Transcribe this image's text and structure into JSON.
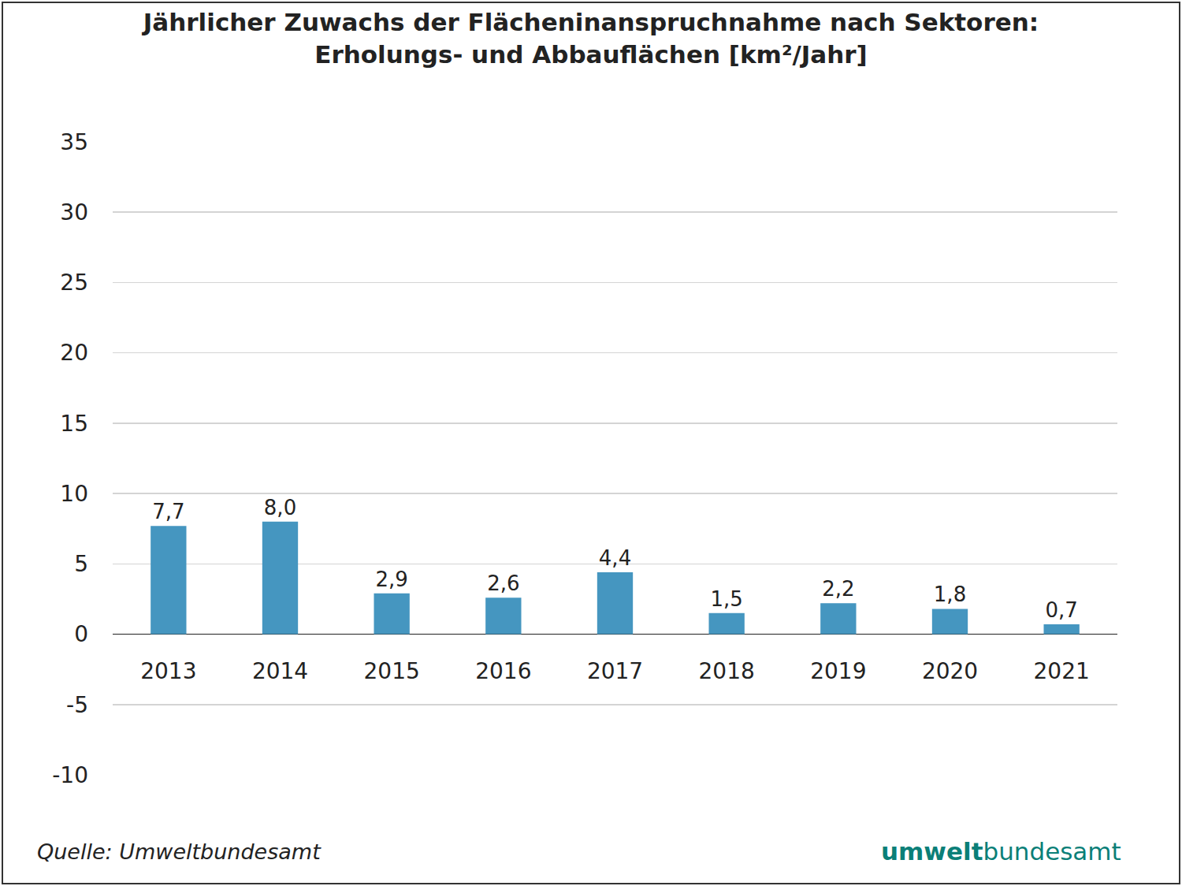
{
  "chart_data": {
    "type": "bar",
    "title": [
      "Jährlicher Zuwachs der Flächeninanspruchnahme nach Sektoren:",
      "Erholungs- und Abbauflächen [km²/Jahr]"
    ],
    "categories": [
      "2013",
      "2014",
      "2015",
      "2016",
      "2017",
      "2018",
      "2019",
      "2020",
      "2021"
    ],
    "values": [
      7.7,
      8.0,
      2.9,
      2.6,
      4.4,
      1.5,
      2.2,
      1.8,
      0.7
    ],
    "value_labels": [
      "7,7",
      "8,0",
      "2,9",
      "2,6",
      "4,4",
      "1,5",
      "2,2",
      "1,8",
      "0,7"
    ],
    "data_labels": true,
    "color": "#4596c0",
    "ylim": [
      -10,
      35
    ],
    "yticks": [
      -10,
      -5,
      0,
      5,
      10,
      15,
      20,
      25,
      30,
      35
    ],
    "grid": true,
    "source": "Quelle: Umweltbundesamt",
    "logo": {
      "bold": "umwelt",
      "regular": "bundesamt"
    }
  }
}
